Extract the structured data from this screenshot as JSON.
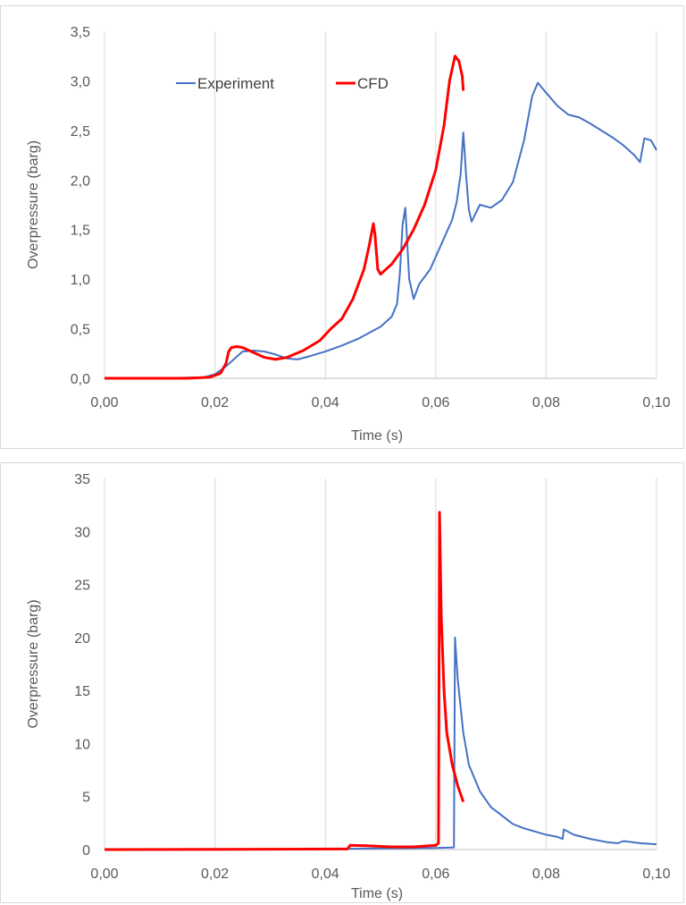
{
  "chart_data": [
    {
      "type": "line",
      "xlabel": "Time (s)",
      "ylabel": "Overpressure (barg)",
      "xlim": [
        0,
        0.1
      ],
      "ylim": [
        0,
        3.5
      ],
      "x_ticks": [
        "0,00",
        "0,02",
        "0,04",
        "0,06",
        "0,08",
        "0,10"
      ],
      "y_ticks": [
        "0,0",
        "0,5",
        "1,0",
        "1,5",
        "2,0",
        "2,5",
        "3,0",
        "3,5"
      ],
      "grid": "vertical",
      "legend": "top-center",
      "series": [
        {
          "name": "Experiment",
          "color": "#4472c4",
          "points": [
            [
              0,
              0
            ],
            [
              0.01,
              0
            ],
            [
              0.018,
              0.01
            ],
            [
              0.02,
              0.04
            ],
            [
              0.022,
              0.12
            ],
            [
              0.024,
              0.22
            ],
            [
              0.025,
              0.27
            ],
            [
              0.027,
              0.28
            ],
            [
              0.029,
              0.27
            ],
            [
              0.031,
              0.24
            ],
            [
              0.033,
              0.2
            ],
            [
              0.035,
              0.19
            ],
            [
              0.037,
              0.22
            ],
            [
              0.04,
              0.27
            ],
            [
              0.043,
              0.33
            ],
            [
              0.046,
              0.4
            ],
            [
              0.048,
              0.46
            ],
            [
              0.05,
              0.52
            ],
            [
              0.052,
              0.62
            ],
            [
              0.053,
              0.75
            ],
            [
              0.0535,
              1.05
            ],
            [
              0.054,
              1.55
            ],
            [
              0.0545,
              1.72
            ],
            [
              0.0552,
              1.0
            ],
            [
              0.056,
              0.8
            ],
            [
              0.057,
              0.95
            ],
            [
              0.059,
              1.1
            ],
            [
              0.061,
              1.35
            ],
            [
              0.063,
              1.6
            ],
            [
              0.0638,
              1.78
            ],
            [
              0.0645,
              2.05
            ],
            [
              0.065,
              2.48
            ],
            [
              0.0655,
              2.05
            ],
            [
              0.066,
              1.7
            ],
            [
              0.0665,
              1.58
            ],
            [
              0.068,
              1.75
            ],
            [
              0.07,
              1.72
            ],
            [
              0.072,
              1.8
            ],
            [
              0.074,
              1.98
            ],
            [
              0.076,
              2.4
            ],
            [
              0.0775,
              2.85
            ],
            [
              0.0785,
              2.98
            ],
            [
              0.08,
              2.88
            ],
            [
              0.082,
              2.75
            ],
            [
              0.084,
              2.66
            ],
            [
              0.086,
              2.63
            ],
            [
              0.088,
              2.57
            ],
            [
              0.09,
              2.5
            ],
            [
              0.092,
              2.43
            ],
            [
              0.094,
              2.35
            ],
            [
              0.096,
              2.25
            ],
            [
              0.097,
              2.18
            ],
            [
              0.0978,
              2.42
            ],
            [
              0.099,
              2.4
            ],
            [
              0.1,
              2.3
            ]
          ]
        },
        {
          "name": "CFD",
          "color": "#ff0000",
          "points": [
            [
              0,
              0
            ],
            [
              0.015,
              0
            ],
            [
              0.019,
              0.01
            ],
            [
              0.021,
              0.05
            ],
            [
              0.022,
              0.15
            ],
            [
              0.0225,
              0.27
            ],
            [
              0.023,
              0.31
            ],
            [
              0.024,
              0.32
            ],
            [
              0.025,
              0.31
            ],
            [
              0.027,
              0.26
            ],
            [
              0.029,
              0.21
            ],
            [
              0.031,
              0.19
            ],
            [
              0.033,
              0.21
            ],
            [
              0.036,
              0.28
            ],
            [
              0.039,
              0.38
            ],
            [
              0.041,
              0.5
            ],
            [
              0.043,
              0.6
            ],
            [
              0.045,
              0.8
            ],
            [
              0.047,
              1.1
            ],
            [
              0.048,
              1.35
            ],
            [
              0.0487,
              1.56
            ],
            [
              0.049,
              1.45
            ],
            [
              0.0495,
              1.1
            ],
            [
              0.05,
              1.05
            ],
            [
              0.052,
              1.15
            ],
            [
              0.054,
              1.3
            ],
            [
              0.056,
              1.5
            ],
            [
              0.058,
              1.75
            ],
            [
              0.06,
              2.1
            ],
            [
              0.0615,
              2.55
            ],
            [
              0.0625,
              3.0
            ],
            [
              0.0635,
              3.25
            ],
            [
              0.0642,
              3.2
            ],
            [
              0.0648,
              3.05
            ],
            [
              0.065,
              2.9
            ]
          ]
        }
      ]
    },
    {
      "type": "line",
      "xlabel": "Time (s)",
      "ylabel": "Overpressure (barg)",
      "xlim": [
        0,
        0.1
      ],
      "ylim": [
        0,
        35
      ],
      "x_ticks": [
        "0,00",
        "0,02",
        "0,04",
        "0,06",
        "0,08",
        "0,10"
      ],
      "y_ticks": [
        "0",
        "5",
        "10",
        "15",
        "20",
        "25",
        "30",
        "35"
      ],
      "grid": "vertical",
      "legend": "none",
      "series": [
        {
          "name": "Experiment",
          "color": "#4472c4",
          "points": [
            [
              0,
              0
            ],
            [
              0.04,
              0.05
            ],
            [
              0.05,
              0.1
            ],
            [
              0.06,
              0.15
            ],
            [
              0.0633,
              0.2
            ],
            [
              0.0635,
              20.0
            ],
            [
              0.064,
              16.0
            ],
            [
              0.065,
              11.0
            ],
            [
              0.066,
              8.0
            ],
            [
              0.068,
              5.5
            ],
            [
              0.07,
              4.0
            ],
            [
              0.072,
              3.2
            ],
            [
              0.073,
              2.8
            ],
            [
              0.074,
              2.4
            ],
            [
              0.076,
              2.0
            ],
            [
              0.078,
              1.7
            ],
            [
              0.08,
              1.4
            ],
            [
              0.082,
              1.2
            ],
            [
              0.083,
              1.0
            ],
            [
              0.0832,
              1.9
            ],
            [
              0.085,
              1.4
            ],
            [
              0.088,
              1.0
            ],
            [
              0.091,
              0.7
            ],
            [
              0.093,
              0.6
            ],
            [
              0.094,
              0.8
            ],
            [
              0.097,
              0.6
            ],
            [
              0.1,
              0.5
            ]
          ]
        },
        {
          "name": "CFD",
          "color": "#ff0000",
          "points": [
            [
              0,
              0
            ],
            [
              0.044,
              0.05
            ],
            [
              0.0445,
              0.4
            ],
            [
              0.048,
              0.35
            ],
            [
              0.052,
              0.25
            ],
            [
              0.056,
              0.25
            ],
            [
              0.06,
              0.4
            ],
            [
              0.0605,
              0.6
            ],
            [
              0.0607,
              31.8
            ],
            [
              0.061,
              22.0
            ],
            [
              0.0615,
              15.0
            ],
            [
              0.062,
              11.0
            ],
            [
              0.063,
              8.0
            ],
            [
              0.064,
              6.0
            ],
            [
              0.065,
              4.5
            ]
          ]
        }
      ]
    }
  ]
}
